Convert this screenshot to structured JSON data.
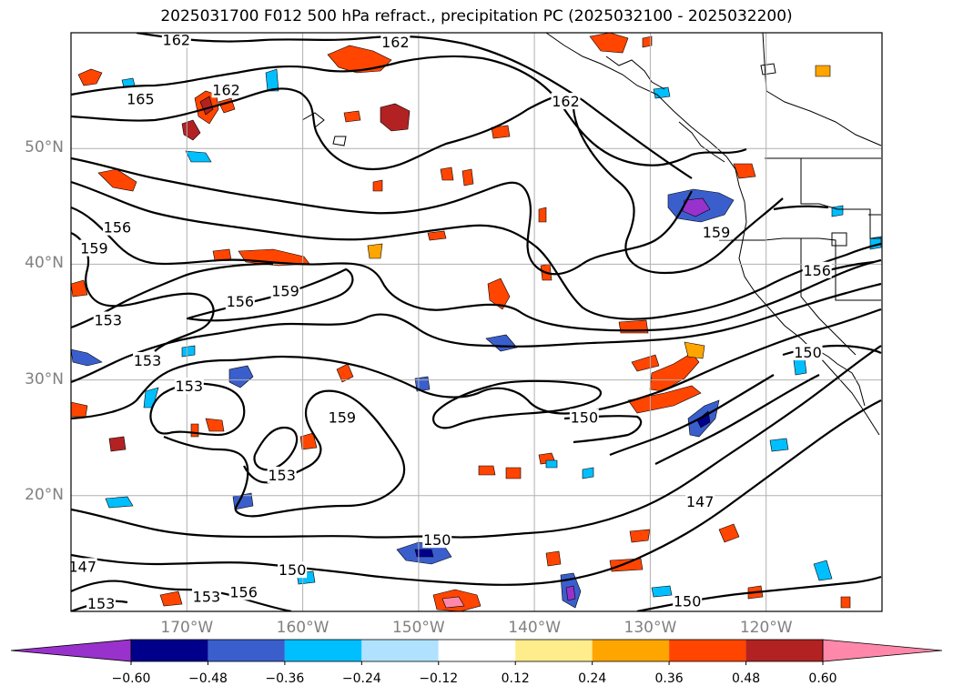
{
  "title": "2025031700 F012 500 hPa refract., precipitation PC (2025032100 - 2025032200)",
  "map": {
    "lon_range": [
      -180,
      -110
    ],
    "lat_range": [
      10,
      60
    ],
    "lat_labels": [
      {
        "lat": 50,
        "text": "50°N"
      },
      {
        "lat": 40,
        "text": "40°N"
      },
      {
        "lat": 30,
        "text": "30°N"
      },
      {
        "lat": 20,
        "text": "20°N"
      }
    ],
    "lon_labels": [
      {
        "lon": -170,
        "text": "170°W"
      },
      {
        "lon": -160,
        "text": "160°W"
      },
      {
        "lon": -150,
        "text": "150°W"
      },
      {
        "lon": -140,
        "text": "140°W"
      },
      {
        "lon": -130,
        "text": "130°W"
      },
      {
        "lon": -120,
        "text": "120°W"
      }
    ],
    "contour_labels": [
      {
        "text": "162",
        "lon": -170.9,
        "lat": 59.4
      },
      {
        "text": "162",
        "lon": -152.0,
        "lat": 59.2
      },
      {
        "text": "162",
        "lon": -166.6,
        "lat": 55.1
      },
      {
        "text": "165",
        "lon": -174.0,
        "lat": 54.3
      },
      {
        "text": "162",
        "lon": -137.3,
        "lat": 54.1
      },
      {
        "text": "156",
        "lon": -176.0,
        "lat": 43.2
      },
      {
        "text": "159",
        "lon": -178.0,
        "lat": 41.4
      },
      {
        "text": "159",
        "lon": -161.5,
        "lat": 37.7
      },
      {
        "text": "156",
        "lon": -165.4,
        "lat": 36.8
      },
      {
        "text": "153",
        "lon": -176.8,
        "lat": 35.2
      },
      {
        "text": "153",
        "lon": -173.4,
        "lat": 31.7
      },
      {
        "text": "153",
        "lon": -169.8,
        "lat": 29.5
      },
      {
        "text": "159",
        "lon": -156.6,
        "lat": 26.8
      },
      {
        "text": "150",
        "lon": -135.7,
        "lat": 26.8
      },
      {
        "text": "153",
        "lon": -161.8,
        "lat": 21.8
      },
      {
        "text": "159",
        "lon": -124.3,
        "lat": 42.8
      },
      {
        "text": "156",
        "lon": -115.6,
        "lat": 39.5
      },
      {
        "text": "150",
        "lon": -116.4,
        "lat": 32.4
      },
      {
        "text": "147",
        "lon": -125.7,
        "lat": 19.5
      },
      {
        "text": "150",
        "lon": -148.4,
        "lat": 16.2
      },
      {
        "text": "147",
        "lon": -179.0,
        "lat": 13.9
      },
      {
        "text": "150",
        "lon": -160.9,
        "lat": 13.6
      },
      {
        "text": "153",
        "lon": -168.3,
        "lat": 11.3
      },
      {
        "text": "156",
        "lon": -165.1,
        "lat": 11.7
      },
      {
        "text": "153",
        "lon": -177.4,
        "lat": 10.7
      },
      {
        "text": "150",
        "lon": -126.8,
        "lat": 10.9
      }
    ]
  },
  "colorbar": {
    "colors": [
      "#9932cc",
      "#00008b",
      "#3a5fcd",
      "#00bfff",
      "#b0e2ff",
      "#ffffff",
      "#ffec8b",
      "#ffa500",
      "#ff4500",
      "#b22222",
      "#ff88aa"
    ],
    "ticks": [
      "−0.60",
      "−0.48",
      "−0.36",
      "−0.24",
      "−0.12",
      "0.12",
      "0.24",
      "0.36",
      "0.48",
      "0.60"
    ]
  }
}
